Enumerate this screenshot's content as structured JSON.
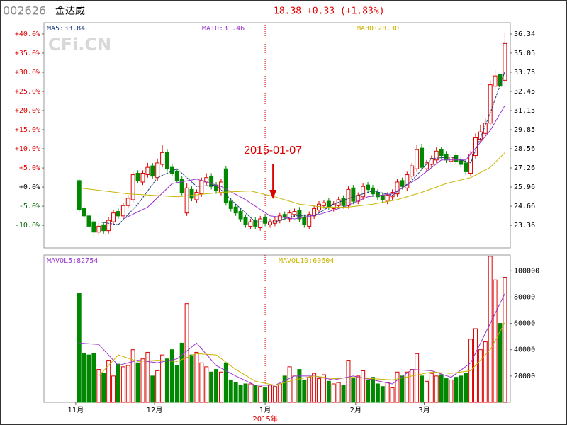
{
  "header": {
    "code": "002626",
    "name": "金达威",
    "quote": "18.38 +0.33 (+1.83%)"
  },
  "watermark": "CFi.CN",
  "chart_data": [
    {
      "type": "candlestick",
      "up_color": "#dd0000",
      "down_color": "#008800",
      "open": [
        26.4,
        24.5,
        24.0,
        23.6,
        22.9,
        23.4,
        23.0,
        23.6,
        24.3,
        24.0,
        24.7,
        25.1,
        26.9,
        26.3,
        26.8,
        27.4,
        26.6,
        27.5,
        28.3,
        27.3,
        27.0,
        26.5,
        24.2,
        25.8,
        25.1,
        25.5,
        26.3,
        26.7,
        26.1,
        25.6,
        27.2,
        25.0,
        24.6,
        24.3,
        23.9,
        23.3,
        23.7,
        23.2,
        23.9,
        23.4,
        23.5,
        23.7,
        24.1,
        23.8,
        24.1,
        24.4,
        23.9,
        23.3,
        24.0,
        24.4,
        24.7,
        25.0,
        24.5,
        24.7,
        25.2,
        24.7,
        25.9,
        25.0,
        25.3,
        26.1,
        25.9,
        25.6,
        25.4,
        25.0,
        25.3,
        25.5,
        26.4,
        25.9,
        26.7,
        27.2,
        28.6,
        27.2,
        27.5,
        27.8,
        28.5,
        28.2,
        27.7,
        28.1,
        27.8,
        27.6,
        26.9,
        28.1,
        29.2,
        29.6,
        30.3,
        32.8,
        33.6,
        33.2
      ],
      "high": [
        26.5,
        24.7,
        24.2,
        23.8,
        23.5,
        23.6,
        23.9,
        24.4,
        24.5,
        24.9,
        25.4,
        27.0,
        27.1,
        27.1,
        27.6,
        27.6,
        27.9,
        28.8,
        28.5,
        27.5,
        27.2,
        26.7,
        26.2,
        26.0,
        25.8,
        26.6,
        26.9,
        26.9,
        26.3,
        26.5,
        27.4,
        25.2,
        24.8,
        24.5,
        24.1,
        23.8,
        23.9,
        24.0,
        24.1,
        23.8,
        23.9,
        24.2,
        24.3,
        24.4,
        24.5,
        24.6,
        24.1,
        24.3,
        24.7,
        25.0,
        25.1,
        25.2,
        25.0,
        25.3,
        25.4,
        26.0,
        26.1,
        25.6,
        26.2,
        26.3,
        26.1,
        25.8,
        25.6,
        25.6,
        25.8,
        26.5,
        26.6,
        27.0,
        27.6,
        28.8,
        28.9,
        27.8,
        28.1,
        28.7,
        28.7,
        28.4,
        28.2,
        28.3,
        28.0,
        27.8,
        28.4,
        29.6,
        30.2,
        30.6,
        33.2,
        33.9,
        33.9,
        36.4
      ],
      "low": [
        24.3,
        23.8,
        23.1,
        22.5,
        22.7,
        22.8,
        22.8,
        23.4,
        23.8,
        23.8,
        24.5,
        24.9,
        26.2,
        26.1,
        26.6,
        26.5,
        26.4,
        27.3,
        27.0,
        26.7,
        26.2,
        25.4,
        24.0,
        25.0,
        24.9,
        25.3,
        26.1,
        25.8,
        25.5,
        25.4,
        24.7,
        24.3,
        24.0,
        23.6,
        23.2,
        23.1,
        23.1,
        23.0,
        23.3,
        23.2,
        23.3,
        23.5,
        23.7,
        23.6,
        23.9,
        23.6,
        23.2,
        23.1,
        23.8,
        24.2,
        24.5,
        24.4,
        24.3,
        24.5,
        24.5,
        24.5,
        24.8,
        24.8,
        25.1,
        25.6,
        25.3,
        25.1,
        24.9,
        24.8,
        25.1,
        25.3,
        25.8,
        25.7,
        26.5,
        27.0,
        27.1,
        27.0,
        27.3,
        27.6,
        27.9,
        27.6,
        27.5,
        27.5,
        27.3,
        26.8,
        26.7,
        27.9,
        29.0,
        29.4,
        30.1,
        32.6,
        32.6,
        33.0
      ],
      "close": [
        24.4,
        24.0,
        23.3,
        22.9,
        23.3,
        23.0,
        23.7,
        24.2,
        24.0,
        24.7,
        25.2,
        26.8,
        26.4,
        26.9,
        27.3,
        26.7,
        27.6,
        28.3,
        27.2,
        26.9,
        26.4,
        25.6,
        25.9,
        25.2,
        25.6,
        26.4,
        26.6,
        26.0,
        25.7,
        26.3,
        24.9,
        24.5,
        24.2,
        23.8,
        23.4,
        23.6,
        23.3,
        23.8,
        23.5,
        23.6,
        23.7,
        24.0,
        23.9,
        24.2,
        24.3,
        23.8,
        23.4,
        24.1,
        24.5,
        24.8,
        24.9,
        24.6,
        24.8,
        25.1,
        24.7,
        25.8,
        25.0,
        25.4,
        26.0,
        25.8,
        25.5,
        25.3,
        25.1,
        25.4,
        25.6,
        26.3,
        26.0,
        26.8,
        27.4,
        28.5,
        27.3,
        27.6,
        27.9,
        28.4,
        28.1,
        27.8,
        28.0,
        27.7,
        27.5,
        27.0,
        28.2,
        29.3,
        29.7,
        30.3,
        32.9,
        33.5,
        32.8,
        35.7
      ],
      "xlim": [
        -7.2,
        88.1
      ],
      "xticks": [
        {
          "value": -0.7,
          "label": "11月"
        },
        {
          "value": 15.4,
          "label": "12月"
        },
        {
          "value": 38,
          "label": "1月"
        },
        {
          "value": 56.5,
          "label": "2月"
        },
        {
          "value": 70.5,
          "label": "3月"
        }
      ],
      "xtick_note": "2015年",
      "crosshair_x": 38,
      "ylim": [
        21.83,
        37.11
      ],
      "yticks": [
        23.36,
        24.66,
        25.96,
        27.26,
        28.56,
        29.85,
        31.15,
        32.45,
        33.75,
        35.05,
        36.34
      ],
      "y2lim": [
        -15.9,
        42.95
      ],
      "y2ticks": [
        {
          "value": -10,
          "label": "-10.0%"
        },
        {
          "value": -5,
          "label": "-5.0%"
        },
        {
          "value": 0,
          "label": "+0.0%"
        },
        {
          "value": 5,
          "label": "+5.0%"
        },
        {
          "value": 10,
          "label": "+10.0%"
        },
        {
          "value": 15,
          "label": "+15.0%"
        },
        {
          "value": 20,
          "label": "+20.0%"
        },
        {
          "value": 25,
          "label": "+25.0%"
        },
        {
          "value": 30,
          "label": "+30.0%"
        },
        {
          "value": 35,
          "label": "+35.0%"
        },
        {
          "value": 40,
          "label": "+40.0%"
        }
      ],
      "annotation": {
        "text": "2015-01-07",
        "x": 39.6,
        "color": "#dd0000"
      },
      "series": [
        {
          "name": "MA5:33.84",
          "color": "#1a3a7a",
          "x": [
            4,
            8,
            12,
            16,
            20,
            24,
            28,
            32,
            36,
            40,
            44,
            48,
            52,
            56,
            60,
            64,
            68,
            72,
            76,
            80,
            84,
            87
          ],
          "values": [
            23.6,
            23.4,
            24.8,
            26.6,
            27.2,
            26.0,
            26.1,
            24.8,
            23.6,
            23.6,
            24.0,
            24.0,
            24.8,
            25.3,
            25.7,
            25.4,
            26.4,
            27.9,
            28.0,
            27.6,
            31.0,
            33.8
          ]
        },
        {
          "name": "MA10:31.46",
          "color": "#9933cc",
          "x": [
            9,
            14,
            19,
            24,
            29,
            34,
            39,
            44,
            49,
            54,
            59,
            64,
            69,
            74,
            79,
            84,
            87
          ],
          "values": [
            23.8,
            24.6,
            26.2,
            26.5,
            26.0,
            25.1,
            24.0,
            23.8,
            24.1,
            24.6,
            25.3,
            25.5,
            26.5,
            27.8,
            27.8,
            29.8,
            31.5
          ]
        },
        {
          "name": "MA30:28.30",
          "color": "#c8b400",
          "x": [
            0,
            10,
            20,
            29,
            35,
            40,
            45,
            50,
            55,
            60,
            65,
            70,
            75,
            80,
            84,
            87
          ],
          "values": [
            25.9,
            25.5,
            25.3,
            25.6,
            25.7,
            25.3,
            24.8,
            24.6,
            24.6,
            24.8,
            25.1,
            25.6,
            26.2,
            26.6,
            27.3,
            28.3
          ]
        }
      ]
    },
    {
      "type": "bar",
      "up_color": "#dd0000",
      "down_color": "#008800",
      "values": [
        83000,
        37000,
        36000,
        37000,
        25000,
        22000,
        32000,
        20000,
        29000,
        27000,
        28000,
        40000,
        30000,
        33000,
        38000,
        20000,
        24000,
        36000,
        33000,
        40000,
        28000,
        45000,
        75000,
        36000,
        38000,
        30000,
        27000,
        23000,
        25000,
        23000,
        30000,
        17000,
        15000,
        13000,
        14000,
        14000,
        13000,
        12000,
        11000,
        13000,
        12000,
        14000,
        20000,
        27000,
        20000,
        25000,
        17000,
        19000,
        22000,
        18000,
        21000,
        16000,
        14000,
        15000,
        13000,
        32000,
        18000,
        20000,
        24000,
        17000,
        19000,
        14000,
        12000,
        15000,
        11000,
        23000,
        20000,
        23000,
        25000,
        37000,
        20000,
        16000,
        22000,
        20000,
        21000,
        18000,
        17000,
        19000,
        20000,
        22000,
        48000,
        56000,
        40000,
        46000,
        111000,
        93000,
        60000,
        95000
      ],
      "xlim": [
        -7.2,
        88.1
      ],
      "ylim": [
        0,
        112000
      ],
      "yticks": [
        20000,
        40000,
        60000,
        80000,
        100000
      ],
      "series": [
        {
          "name": "MAVOL5:82754",
          "color": "#9933cc",
          "x": [
            0,
            4,
            8,
            12,
            16,
            20,
            24,
            28,
            32,
            36,
            40,
            44,
            48,
            52,
            56,
            60,
            64,
            68,
            72,
            76,
            80,
            84,
            87
          ],
          "values": [
            45000,
            44000,
            28000,
            32000,
            30000,
            33000,
            45000,
            28000,
            20000,
            13000,
            13000,
            20000,
            20000,
            17000,
            20000,
            17000,
            14000,
            25000,
            24000,
            19000,
            30000,
            60000,
            82754
          ]
        },
        {
          "name": "MAVOL10:60604",
          "color": "#c8b400",
          "x": [
            4,
            8,
            12,
            16,
            20,
            24,
            28,
            32,
            36,
            40,
            44,
            48,
            52,
            56,
            60,
            64,
            68,
            72,
            76,
            80,
            84,
            87
          ],
          "values": [
            20000,
            36000,
            31000,
            32000,
            31000,
            37000,
            36000,
            25000,
            16000,
            13000,
            17000,
            20000,
            18000,
            19000,
            18000,
            17000,
            20000,
            23000,
            22000,
            24000,
            40000,
            60604
          ]
        }
      ]
    }
  ]
}
